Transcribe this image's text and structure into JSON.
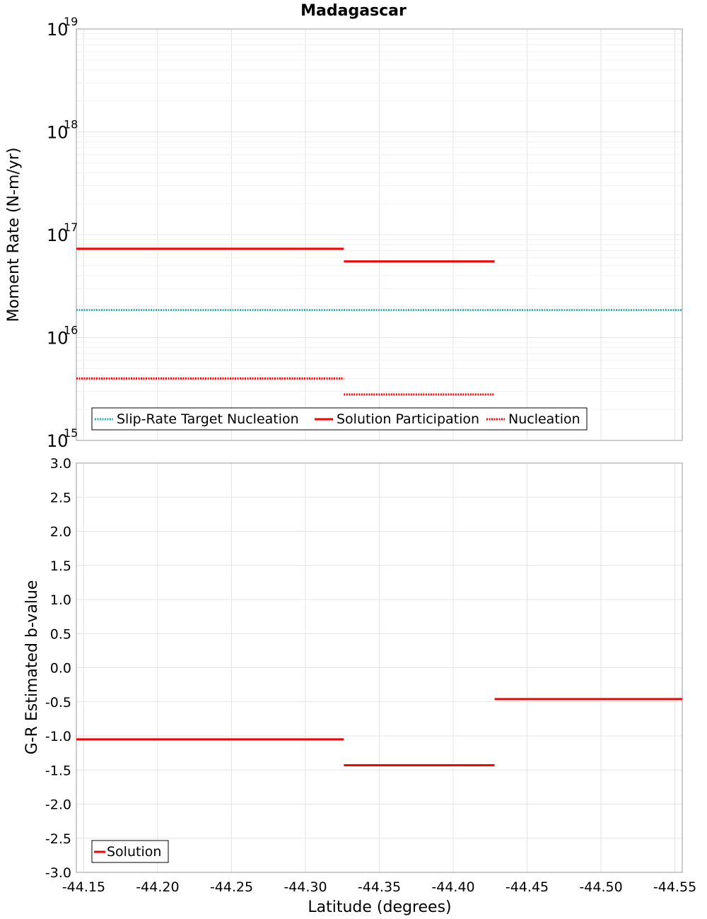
{
  "chart_data": [
    {
      "type": "line",
      "title": "Madagascar",
      "ylabel": "Moment Rate (N-m/yr)",
      "xlabel": "",
      "yscale": "log",
      "xlim": [
        -44.145,
        -44.555
      ],
      "ylim": [
        1000000000000000.0,
        1e+19
      ],
      "y_ticks": [
        {
          "base": "10",
          "exp": "15",
          "value": 1000000000000000.0
        },
        {
          "base": "10",
          "exp": "16",
          "value": 1e+16
        },
        {
          "base": "10",
          "exp": "17",
          "value": 1e+17
        },
        {
          "base": "10",
          "exp": "18",
          "value": 1e+18
        },
        {
          "base": "10",
          "exp": "19",
          "value": 1e+19
        }
      ],
      "grid": true,
      "legend_position": "bottom-left",
      "series": [
        {
          "name": "Slip-Rate Target Nucleation",
          "color": "#1fb3c2",
          "style": "dotted",
          "segments": [
            {
              "x0": -44.145,
              "x1": -44.555,
              "y": 1.85e+16
            }
          ]
        },
        {
          "name": "Solution Participation",
          "color": "#ff0000",
          "style": "solid",
          "segments": [
            {
              "x0": -44.145,
              "x1": -44.326,
              "y": 7.3e+16
            },
            {
              "x0": -44.326,
              "x1": -44.428,
              "y": 5.5e+16
            }
          ]
        },
        {
          "name": "Nucleation",
          "color": "#ff0000",
          "style": "dotted",
          "segments": [
            {
              "x0": -44.145,
              "x1": -44.326,
              "y": 4000000000000000.0
            },
            {
              "x0": -44.326,
              "x1": -44.428,
              "y": 2800000000000000.0
            }
          ]
        }
      ]
    },
    {
      "type": "line",
      "title": "",
      "ylabel": "G-R Estimated b-value",
      "xlabel": "Latitude (degrees)",
      "xlim": [
        -44.145,
        -44.555
      ],
      "ylim": [
        -3.0,
        3.0
      ],
      "x_ticks": [
        "-44.15",
        "-44.20",
        "-44.25",
        "-44.30",
        "-44.35",
        "-44.40",
        "-44.45",
        "-44.50",
        "-44.55"
      ],
      "x_tick_values": [
        -44.15,
        -44.2,
        -44.25,
        -44.3,
        -44.35,
        -44.4,
        -44.45,
        -44.5,
        -44.55
      ],
      "y_ticks": [
        "3.0",
        "2.5",
        "2.0",
        "1.5",
        "1.0",
        "0.5",
        "0.0",
        "-0.5",
        "-1.0",
        "-1.5",
        "-2.0",
        "-2.5",
        "-3.0"
      ],
      "y_tick_values": [
        3.0,
        2.5,
        2.0,
        1.5,
        1.0,
        0.5,
        0.0,
        -0.5,
        -1.0,
        -1.5,
        -2.0,
        -2.5,
        -3.0
      ],
      "grid": true,
      "legend_position": "bottom-left",
      "series": [
        {
          "name": "Solution",
          "color": "#ff0000",
          "style": "solid",
          "segments": [
            {
              "x0": -44.145,
              "x1": -44.326,
              "y": -1.05
            },
            {
              "x0": -44.326,
              "x1": -44.428,
              "y": -1.43
            },
            {
              "x0": -44.428,
              "x1": -44.555,
              "y": -0.46
            }
          ]
        }
      ]
    }
  ]
}
